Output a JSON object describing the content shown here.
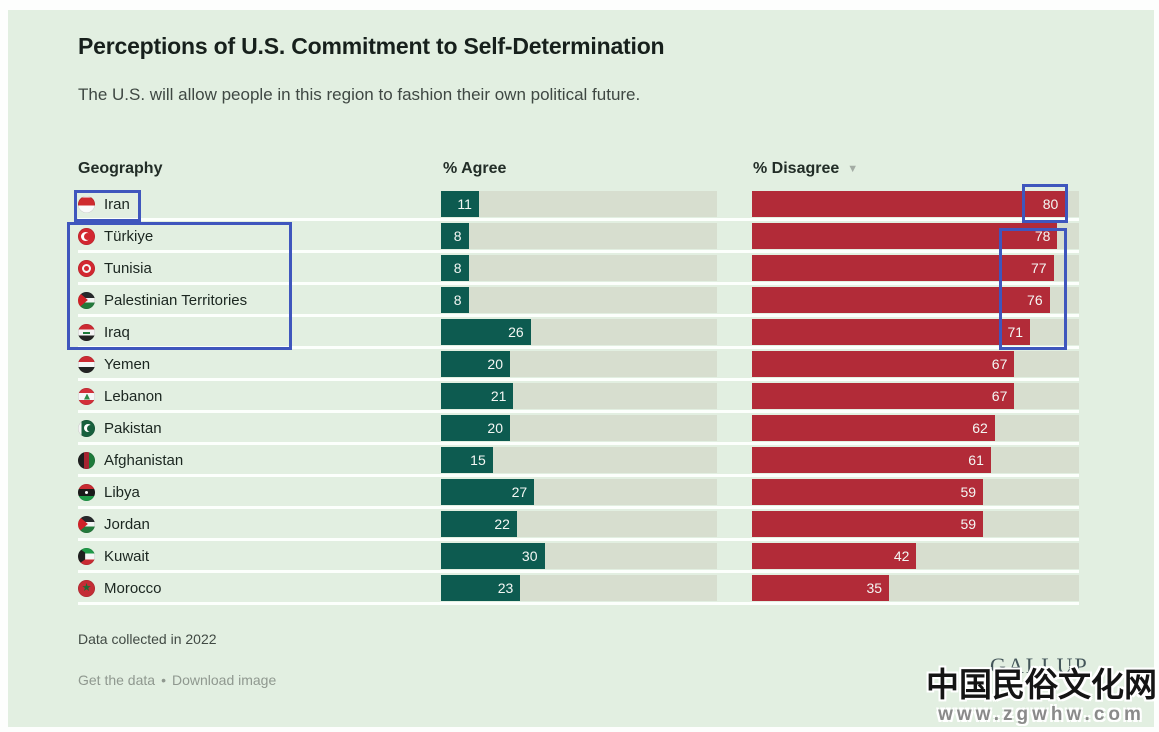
{
  "title": "Perceptions of U.S. Commitment to Self-Determination",
  "subtitle": "The U.S. will allow people in this region to fashion their own political future.",
  "columns": {
    "geography": "Geography",
    "agree": "% Agree",
    "disagree": "% Disagree",
    "sort_icon": "▼"
  },
  "chart_data": {
    "type": "bar",
    "orientation": "horizontal",
    "title": "Perceptions of U.S. Commitment to Self-Determination",
    "subtitle": "The U.S. will allow people in this region to fashion their own political future.",
    "categories": [
      "Iran",
      "Türkiye",
      "Tunisia",
      "Palestinian Territories",
      "Iraq",
      "Yemen",
      "Lebanon",
      "Pakistan",
      "Afghanistan",
      "Libya",
      "Jordan",
      "Kuwait",
      "Morocco"
    ],
    "series": [
      {
        "name": "% Agree",
        "values": [
          11,
          8,
          8,
          8,
          26,
          20,
          21,
          20,
          15,
          27,
          22,
          30,
          23
        ],
        "color": "#0d5b50"
      },
      {
        "name": "% Disagree",
        "values": [
          80,
          78,
          77,
          76,
          71,
          67,
          67,
          62,
          61,
          59,
          59,
          42,
          35
        ],
        "color": "#b22b38"
      }
    ],
    "sorted_by": "% Disagree descending",
    "scale_max": {
      "agree": 80,
      "disagree": 83.5
    },
    "track_color": "#d7decf",
    "background_color": "#e2efe1",
    "note": "Data collected in 2022"
  },
  "rows": [
    {
      "country": "Iran",
      "flag": "iran",
      "agree": 11,
      "disagree": 80
    },
    {
      "country": "Türkiye",
      "flag": "turkiye",
      "agree": 8,
      "disagree": 78
    },
    {
      "country": "Tunisia",
      "flag": "tunisia",
      "agree": 8,
      "disagree": 77
    },
    {
      "country": "Palestinian Territories",
      "flag": "palestine",
      "agree": 8,
      "disagree": 76
    },
    {
      "country": "Iraq",
      "flag": "iraq",
      "agree": 26,
      "disagree": 71
    },
    {
      "country": "Yemen",
      "flag": "yemen",
      "agree": 20,
      "disagree": 67
    },
    {
      "country": "Lebanon",
      "flag": "lebanon",
      "agree": 21,
      "disagree": 67
    },
    {
      "country": "Pakistan",
      "flag": "pakistan",
      "agree": 20,
      "disagree": 62
    },
    {
      "country": "Afghanistan",
      "flag": "afghanistan",
      "agree": 15,
      "disagree": 61
    },
    {
      "country": "Libya",
      "flag": "libya",
      "agree": 27,
      "disagree": 59
    },
    {
      "country": "Jordan",
      "flag": "jordan",
      "agree": 22,
      "disagree": 59
    },
    {
      "country": "Kuwait",
      "flag": "kuwait",
      "agree": 30,
      "disagree": 42
    },
    {
      "country": "Morocco",
      "flag": "morocco",
      "agree": 23,
      "disagree": 35
    }
  ],
  "footer": {
    "note": "Data collected in 2022",
    "get_data_link": "Get the data",
    "separator": "•",
    "download_link": "Download image",
    "brand": "GALLUP"
  },
  "watermark": {
    "line1": "中国民俗文化网",
    "line2": "www.zgwhw.com"
  },
  "annotations": {
    "color": "#3f56bd",
    "boxes": [
      "highlight around Iran flag and label",
      "highlight around Türkiye, Tunisia, Palestinian Territories and Iraq labels",
      "highlight around Iran disagree value 80",
      "highlight around disagree values 78, 77, 76, 71"
    ]
  }
}
